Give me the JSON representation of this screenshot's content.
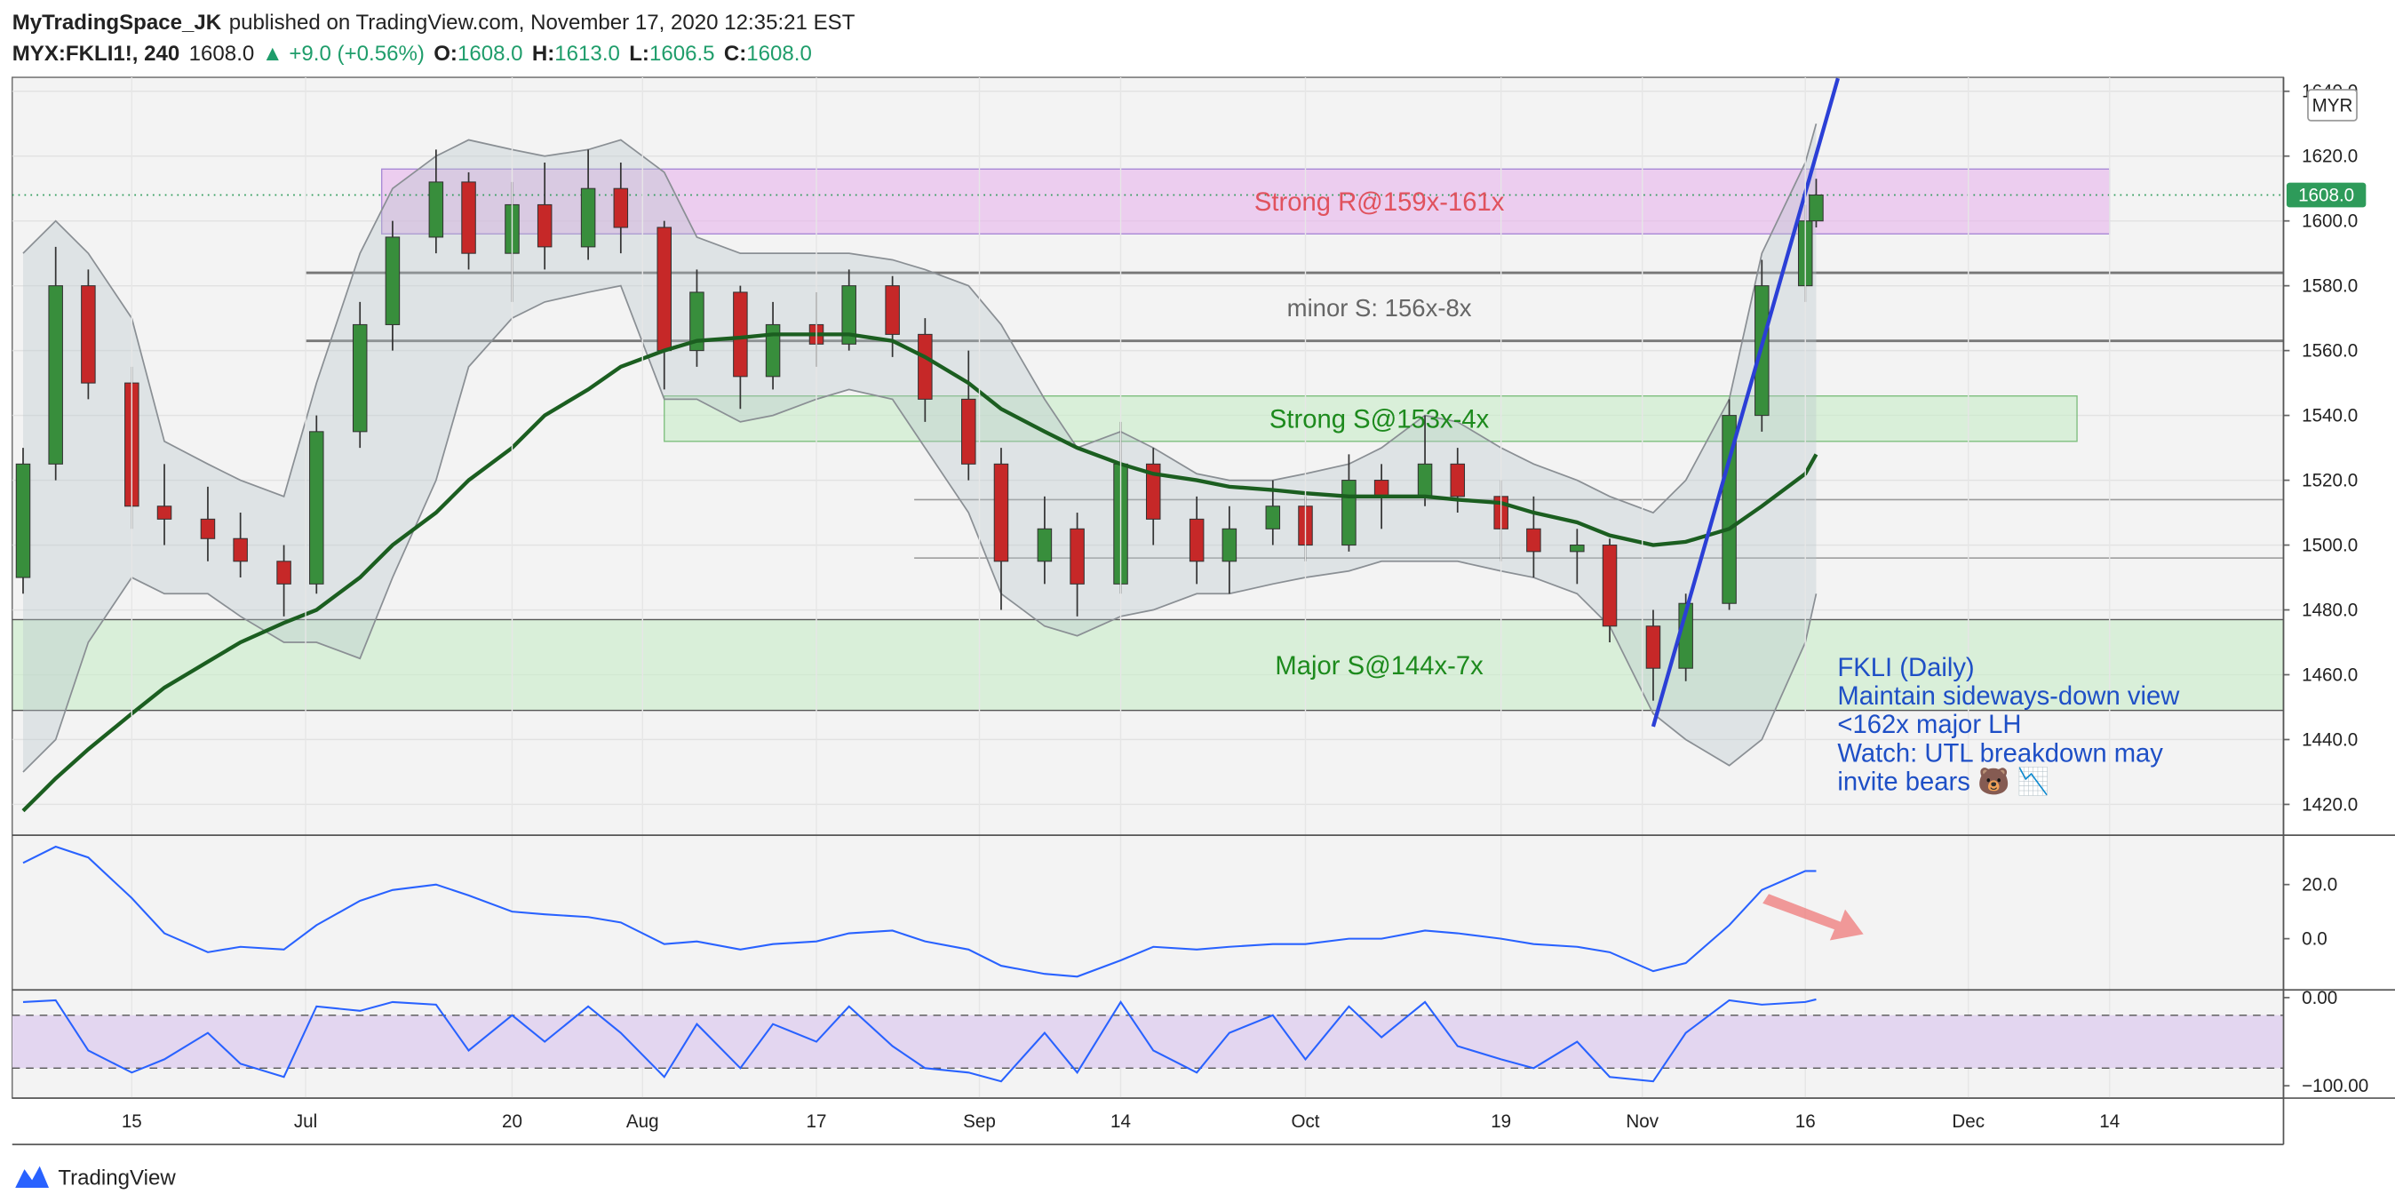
{
  "header": {
    "author": "MyTradingSpace_JK",
    "published": "published on TradingView.com, November 17, 2020 12:35:21 EST",
    "symbol": "MYX:FKLI1!, 240",
    "last": "1608.0",
    "change": "▲ +9.0 (+0.56%)",
    "ohlc": [
      [
        "O:",
        "1608.0"
      ],
      [
        "H:",
        "1613.0"
      ],
      [
        "L:",
        "1606.5"
      ],
      [
        "C:",
        "1608.0"
      ]
    ],
    "brand": "TradingView"
  },
  "chart_data": [
    {
      "type": "candlestick",
      "axis_label": "MYR",
      "up_color": "#388e3c",
      "down_color": "#c62828",
      "grid": true,
      "xlim": [
        "2020-06-04",
        "2020-12-30"
      ],
      "xticks": [
        {
          "value": "2020-06-15",
          "label": "15"
        },
        {
          "value": "2020-07-01",
          "label": "Jul"
        },
        {
          "value": "2020-07-20",
          "label": "20"
        },
        {
          "value": "2020-08-01",
          "label": "Aug"
        },
        {
          "value": "2020-08-17",
          "label": "17"
        },
        {
          "value": "2020-09-01",
          "label": "Sep"
        },
        {
          "value": "2020-09-14",
          "label": "14"
        },
        {
          "value": "2020-10-01",
          "label": "Oct"
        },
        {
          "value": "2020-10-19",
          "label": "19"
        },
        {
          "value": "2020-11-01",
          "label": "Nov"
        },
        {
          "value": "2020-11-16",
          "label": "16"
        },
        {
          "value": "2020-12-01",
          "label": "Dec"
        },
        {
          "value": "2020-12-14",
          "label": "14"
        }
      ],
      "ylim": [
        1410.5,
        1644.3
      ],
      "yticks": [
        {
          "value": 1420,
          "label": "1420.0"
        },
        {
          "value": 1440,
          "label": "1440.0"
        },
        {
          "value": 1460,
          "label": "1460.0"
        },
        {
          "value": 1480,
          "label": "1480.0"
        },
        {
          "value": 1500,
          "label": "1500.0"
        },
        {
          "value": 1520,
          "label": "1520.0"
        },
        {
          "value": 1540,
          "label": "1540.0"
        },
        {
          "value": 1560,
          "label": "1560.0"
        },
        {
          "value": 1580,
          "label": "1580.0"
        },
        {
          "value": 1600,
          "label": "1600.0"
        },
        {
          "value": 1620,
          "label": "1620.0"
        },
        {
          "value": 1640,
          "label": "1640.0"
        }
      ],
      "x": [
        "2020-06-05",
        "2020-06-08",
        "2020-06-11",
        "2020-06-15",
        "2020-06-18",
        "2020-06-22",
        "2020-06-25",
        "2020-06-29",
        "2020-07-02",
        "2020-07-06",
        "2020-07-09",
        "2020-07-13",
        "2020-07-16",
        "2020-07-20",
        "2020-07-23",
        "2020-07-27",
        "2020-07-30",
        "2020-08-03",
        "2020-08-06",
        "2020-08-10",
        "2020-08-13",
        "2020-08-17",
        "2020-08-20",
        "2020-08-24",
        "2020-08-27",
        "2020-08-31",
        "2020-09-03",
        "2020-09-07",
        "2020-09-10",
        "2020-09-14",
        "2020-09-17",
        "2020-09-21",
        "2020-09-24",
        "2020-09-28",
        "2020-10-01",
        "2020-10-05",
        "2020-10-08",
        "2020-10-12",
        "2020-10-15",
        "2020-10-19",
        "2020-10-22",
        "2020-10-26",
        "2020-10-29",
        "2020-11-02",
        "2020-11-05",
        "2020-11-09",
        "2020-11-12",
        "2020-11-16",
        "2020-11-17"
      ],
      "open": [
        1490,
        1525,
        1580,
        1550,
        1512,
        1508,
        1502,
        1495,
        1488,
        1535,
        1568,
        1595,
        1612,
        1590,
        1605,
        1592,
        1610,
        1598,
        1560,
        1578,
        1552,
        1568,
        1562,
        1580,
        1565,
        1545,
        1525,
        1495,
        1505,
        1488,
        1525,
        1508,
        1495,
        1505,
        1512,
        1500,
        1520,
        1515,
        1525,
        1515,
        1505,
        1498,
        1500,
        1475,
        1462,
        1482,
        1540,
        1580,
        1600
      ],
      "high": [
        1530,
        1592,
        1585,
        1555,
        1525,
        1518,
        1510,
        1500,
        1540,
        1575,
        1600,
        1622,
        1615,
        1612,
        1618,
        1622,
        1618,
        1600,
        1585,
        1580,
        1575,
        1578,
        1585,
        1583,
        1570,
        1560,
        1530,
        1515,
        1510,
        1538,
        1530,
        1515,
        1512,
        1520,
        1515,
        1528,
        1525,
        1540,
        1530,
        1520,
        1515,
        1505,
        1502,
        1480,
        1485,
        1545,
        1588,
        1605,
        1613
      ],
      "low": [
        1485,
        1520,
        1545,
        1505,
        1500,
        1495,
        1490,
        1478,
        1485,
        1530,
        1560,
        1590,
        1585,
        1575,
        1585,
        1588,
        1590,
        1548,
        1555,
        1542,
        1548,
        1555,
        1560,
        1558,
        1538,
        1520,
        1480,
        1488,
        1478,
        1485,
        1500,
        1488,
        1485,
        1500,
        1495,
        1498,
        1505,
        1512,
        1510,
        1495,
        1490,
        1488,
        1470,
        1452,
        1458,
        1480,
        1535,
        1575,
        1598
      ],
      "close": [
        1525,
        1580,
        1550,
        1512,
        1508,
        1502,
        1495,
        1488,
        1535,
        1568,
        1595,
        1612,
        1590,
        1605,
        1592,
        1610,
        1598,
        1560,
        1578,
        1552,
        1568,
        1562,
        1580,
        1565,
        1545,
        1525,
        1495,
        1505,
        1488,
        1525,
        1508,
        1495,
        1505,
        1512,
        1500,
        1520,
        1515,
        1525,
        1515,
        1505,
        1498,
        1500,
        1475,
        1462,
        1482,
        1540,
        1580,
        1600,
        1608
      ],
      "bands": {
        "color": "#8a8f94",
        "upper": [
          1590,
          1600,
          1590,
          1570,
          1532,
          1525,
          1520,
          1515,
          1550,
          1590,
          1610,
          1620,
          1625,
          1622,
          1620,
          1622,
          1625,
          1615,
          1595,
          1590,
          1590,
          1590,
          1590,
          1588,
          1585,
          1580,
          1568,
          1545,
          1530,
          1535,
          1530,
          1522,
          1520,
          1520,
          1522,
          1525,
          1530,
          1540,
          1538,
          1530,
          1525,
          1520,
          1515,
          1510,
          1520,
          1545,
          1590,
          1618,
          1630
        ],
        "lower": [
          1430,
          1440,
          1470,
          1490,
          1485,
          1485,
          1478,
          1470,
          1470,
          1465,
          1490,
          1520,
          1555,
          1570,
          1575,
          1578,
          1580,
          1545,
          1545,
          1538,
          1540,
          1545,
          1548,
          1545,
          1530,
          1510,
          1485,
          1475,
          1472,
          1478,
          1480,
          1485,
          1485,
          1488,
          1490,
          1492,
          1495,
          1495,
          1495,
          1492,
          1490,
          1485,
          1475,
          1448,
          1440,
          1432,
          1440,
          1470,
          1485
        ]
      },
      "overlays": [
        {
          "color": "#1b5e20",
          "values": [
            1418,
            1428,
            1437,
            1448,
            1456,
            1464,
            1470,
            1476,
            1480,
            1490,
            1500,
            1510,
            1520,
            1530,
            1540,
            1548,
            1555,
            1560,
            1563,
            1564,
            1565,
            1565,
            1565,
            1563,
            1558,
            1550,
            1542,
            1535,
            1530,
            1525,
            1522,
            1520,
            1518,
            1517,
            1516,
            1515,
            1515,
            1515,
            1514,
            1513,
            1510,
            1507,
            1503,
            1500,
            1501,
            1505,
            1512,
            1522,
            1528
          ]
        }
      ],
      "zones": [
        {
          "label": "Strong R@159x-161x",
          "range": [
            1596,
            1616
          ],
          "x": [
            "2020-07-08",
            "2020-12-14"
          ],
          "color": "#e8b4ec",
          "border": "#a98ad6",
          "text_color": "#e0525e"
        },
        {
          "label": "Strong S@153x-4x",
          "range": [
            1532,
            1546
          ],
          "x": [
            "2020-08-03",
            "2020-12-11"
          ],
          "color": "#c8ecc8",
          "border": "#7fbf7f",
          "text_color": "#1d8a1d"
        },
        {
          "label": "Major S@144x-7x",
          "range": [
            1449,
            1477
          ],
          "x": [
            "2020-06-04",
            "2020-12-30"
          ],
          "color": "#c8ecc8",
          "border": "#555555",
          "text_color": "#1d8a1d"
        }
      ],
      "levels": [
        {
          "label": "minor S: 156x-8x",
          "values": [
            1584,
            1563
          ],
          "x": [
            "2020-07-01",
            "2020-12-30"
          ],
          "color": "#777777",
          "text_color": "#666666"
        },
        {
          "values": [
            1514,
            1496
          ],
          "x": [
            "2020-08-26",
            "2020-12-30"
          ],
          "color": "#999999"
        }
      ],
      "trendline": {
        "x": [
          "2020-11-02",
          "2020-11-19"
        ],
        "values": [
          1444,
          1644
        ],
        "color": "#2b3fd6"
      },
      "last_price": {
        "value": 1608,
        "label": "1608.0",
        "color": "#2e9b5a"
      },
      "note": {
        "lines": [
          "FKLI (Daily)",
          "Maintain sideways-down view",
          "<162x major LH",
          "Watch: UTL breakdown may",
          "invite bears 🐻 📉"
        ],
        "color": "#1e4fc6"
      }
    },
    {
      "type": "line",
      "color": "#2962ff",
      "ylim": [
        -18.9,
        37.1
      ],
      "yticks": [
        {
          "value": 20,
          "label": "20.0"
        },
        {
          "value": 0,
          "label": "0.0"
        }
      ],
      "x": [
        "2020-06-05",
        "2020-06-08",
        "2020-06-11",
        "2020-06-15",
        "2020-06-18",
        "2020-06-22",
        "2020-06-25",
        "2020-06-29",
        "2020-07-02",
        "2020-07-06",
        "2020-07-09",
        "2020-07-13",
        "2020-07-16",
        "2020-07-20",
        "2020-07-23",
        "2020-07-27",
        "2020-07-30",
        "2020-08-03",
        "2020-08-06",
        "2020-08-10",
        "2020-08-13",
        "2020-08-17",
        "2020-08-20",
        "2020-08-24",
        "2020-08-27",
        "2020-08-31",
        "2020-09-03",
        "2020-09-07",
        "2020-09-10",
        "2020-09-14",
        "2020-09-17",
        "2020-09-21",
        "2020-09-24",
        "2020-09-28",
        "2020-10-01",
        "2020-10-05",
        "2020-10-08",
        "2020-10-12",
        "2020-10-15",
        "2020-10-19",
        "2020-10-22",
        "2020-10-26",
        "2020-10-29",
        "2020-11-02",
        "2020-11-05",
        "2020-11-09",
        "2020-11-12",
        "2020-11-16",
        "2020-11-17"
      ],
      "values": [
        28,
        34,
        30,
        15,
        2,
        -5,
        -3,
        -4,
        5,
        14,
        18,
        20,
        16,
        10,
        9,
        8,
        6,
        -2,
        -1,
        -4,
        -2,
        -1,
        2,
        3,
        -1,
        -4,
        -10,
        -13,
        -14,
        -8,
        -3,
        -4,
        -3,
        -2,
        -2,
        0,
        0,
        3,
        2,
        0,
        -2,
        -3,
        -5,
        -12,
        -9,
        5,
        18,
        25,
        25
      ]
    },
    {
      "type": "line",
      "color": "#2962ff",
      "levels": [
        -20,
        -80
      ],
      "band_color": "#e3d6f0",
      "ylim": [
        -114,
        5.3
      ],
      "yticks": [
        {
          "value": 0,
          "label": "0.00"
        },
        {
          "value": -100,
          "label": "−100.00"
        }
      ],
      "x": [
        "2020-06-05",
        "2020-06-08",
        "2020-06-11",
        "2020-06-15",
        "2020-06-18",
        "2020-06-22",
        "2020-06-25",
        "2020-06-29",
        "2020-07-02",
        "2020-07-06",
        "2020-07-09",
        "2020-07-13",
        "2020-07-16",
        "2020-07-20",
        "2020-07-23",
        "2020-07-27",
        "2020-07-30",
        "2020-08-03",
        "2020-08-06",
        "2020-08-10",
        "2020-08-13",
        "2020-08-17",
        "2020-08-20",
        "2020-08-24",
        "2020-08-27",
        "2020-08-31",
        "2020-09-03",
        "2020-09-07",
        "2020-09-10",
        "2020-09-14",
        "2020-09-17",
        "2020-09-21",
        "2020-09-24",
        "2020-09-28",
        "2020-10-01",
        "2020-10-05",
        "2020-10-08",
        "2020-10-12",
        "2020-10-15",
        "2020-10-19",
        "2020-10-22",
        "2020-10-26",
        "2020-10-29",
        "2020-11-02",
        "2020-11-05",
        "2020-11-09",
        "2020-11-12",
        "2020-11-16",
        "2020-11-17"
      ],
      "values": [
        -5,
        -3,
        -60,
        -85,
        -70,
        -40,
        -75,
        -90,
        -10,
        -15,
        -5,
        -8,
        -60,
        -20,
        -50,
        -10,
        -40,
        -90,
        -30,
        -80,
        -30,
        -50,
        -10,
        -55,
        -80,
        -85,
        -95,
        -40,
        -85,
        -5,
        -60,
        -85,
        -40,
        -20,
        -70,
        -10,
        -45,
        -5,
        -55,
        -70,
        -80,
        -50,
        -90,
        -95,
        -40,
        -3,
        -8,
        -5,
        -2
      ]
    }
  ]
}
